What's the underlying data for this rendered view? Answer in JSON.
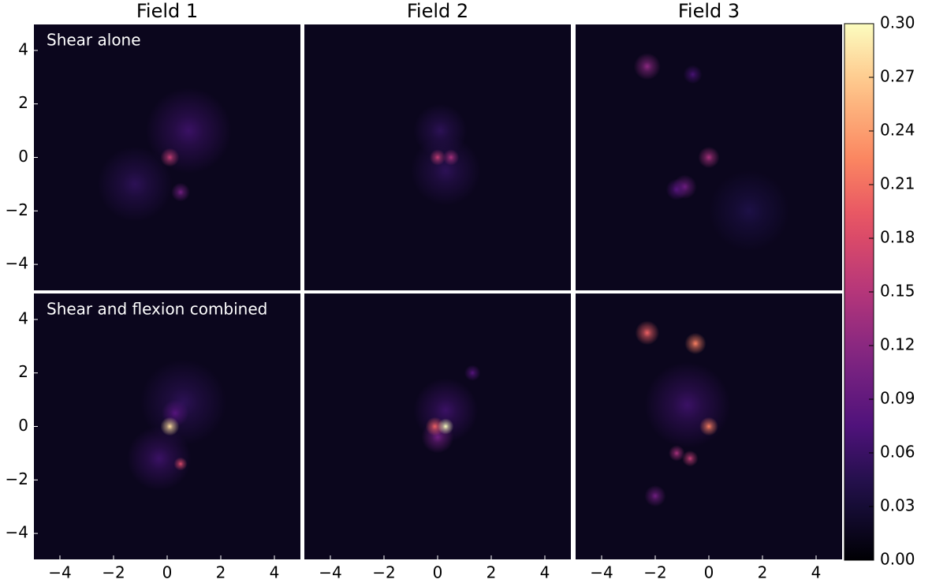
{
  "chart_data": {
    "type": "heatmap",
    "column_titles": [
      "Field 1",
      "Field 2",
      "Field 3"
    ],
    "row_labels": [
      "Shear alone",
      "Shear and flexion combined"
    ],
    "xlim": [
      -5,
      5
    ],
    "ylim": [
      -5,
      5
    ],
    "xticks": [
      {
        "value": -4,
        "label": "−4"
      },
      {
        "value": -2,
        "label": "−2"
      },
      0,
      2,
      4
    ],
    "yticks": [
      {
        "value": -4,
        "label": "−4"
      },
      {
        "value": -2,
        "label": "−2"
      },
      0,
      2,
      4
    ],
    "colormap": "magma",
    "background": 0.015,
    "clim": [
      0,
      0.3
    ],
    "cticks": [
      {
        "value": 0,
        "label": "0.00"
      },
      0.03,
      0.06,
      0.09,
      0.12,
      0.15,
      0.18,
      0.21,
      0.24,
      0.27,
      {
        "value": 0.3,
        "label": "0.30"
      }
    ],
    "panels": [
      {
        "peaks": [
          {
            "x": 0.8,
            "y": 1.0,
            "value": 0.06,
            "width": 1.6
          },
          {
            "x": -1.2,
            "y": -1.0,
            "value": 0.05,
            "width": 1.4
          },
          {
            "x": 0.1,
            "y": 0.0,
            "value": 0.16,
            "width": 0.35
          },
          {
            "x": 0.5,
            "y": -1.3,
            "value": 0.1,
            "width": 0.35
          }
        ]
      },
      {
        "peaks": [
          {
            "x": 0.1,
            "y": 1.0,
            "value": 0.05,
            "width": 1.0
          },
          {
            "x": 0.3,
            "y": -0.5,
            "value": 0.05,
            "width": 1.3
          },
          {
            "x": 0.0,
            "y": 0.0,
            "value": 0.16,
            "width": 0.3
          },
          {
            "x": 0.5,
            "y": 0.0,
            "value": 0.14,
            "width": 0.3
          }
        ]
      },
      {
        "peaks": [
          {
            "x": 1.5,
            "y": -2.0,
            "value": 0.04,
            "width": 1.5
          },
          {
            "x": -2.3,
            "y": 3.4,
            "value": 0.12,
            "width": 0.5
          },
          {
            "x": -0.6,
            "y": 3.1,
            "value": 0.07,
            "width": 0.35
          },
          {
            "x": 0.0,
            "y": 0.0,
            "value": 0.14,
            "width": 0.4
          },
          {
            "x": -0.9,
            "y": -1.1,
            "value": 0.1,
            "width": 0.45
          },
          {
            "x": -1.2,
            "y": -1.2,
            "value": 0.08,
            "width": 0.4
          }
        ]
      },
      {
        "peaks": [
          {
            "x": 0.6,
            "y": 0.9,
            "value": 0.05,
            "width": 1.6
          },
          {
            "x": -0.3,
            "y": -1.2,
            "value": 0.06,
            "width": 1.2
          },
          {
            "x": 0.3,
            "y": 0.5,
            "value": 0.08,
            "width": 0.5
          },
          {
            "x": 0.1,
            "y": 0.0,
            "value": 0.28,
            "width": 0.35
          },
          {
            "x": 0.5,
            "y": -1.4,
            "value": 0.18,
            "width": 0.25
          }
        ]
      },
      {
        "peaks": [
          {
            "x": 0.3,
            "y": 0.6,
            "value": 0.06,
            "width": 1.2
          },
          {
            "x": 0.0,
            "y": -0.4,
            "value": 0.1,
            "width": 0.6
          },
          {
            "x": 1.3,
            "y": 2.0,
            "value": 0.08,
            "width": 0.3
          },
          {
            "x": -0.1,
            "y": 0.0,
            "value": 0.2,
            "width": 0.35
          },
          {
            "x": 0.3,
            "y": 0.0,
            "value": 0.3,
            "width": 0.3
          }
        ]
      },
      {
        "peaks": [
          {
            "x": -0.8,
            "y": 0.8,
            "value": 0.06,
            "width": 1.6
          },
          {
            "x": -2.3,
            "y": 3.5,
            "value": 0.2,
            "width": 0.45
          },
          {
            "x": -0.5,
            "y": 3.1,
            "value": 0.22,
            "width": 0.4
          },
          {
            "x": 0.0,
            "y": 0.0,
            "value": 0.22,
            "width": 0.35
          },
          {
            "x": -1.2,
            "y": -1.0,
            "value": 0.14,
            "width": 0.3
          },
          {
            "x": -0.7,
            "y": -1.2,
            "value": 0.16,
            "width": 0.3
          },
          {
            "x": -2.0,
            "y": -2.6,
            "value": 0.1,
            "width": 0.4
          }
        ]
      }
    ]
  }
}
